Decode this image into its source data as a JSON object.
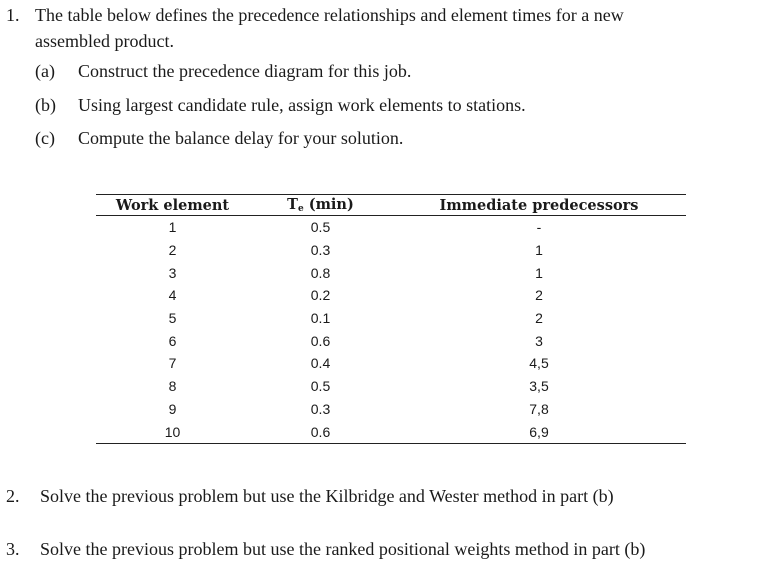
{
  "question1": {
    "number": "1.",
    "text_line1": "The table below defines the precedence relationships and element times for a new",
    "text_line2": "assembled product.",
    "parts": [
      {
        "label": "(a)",
        "text": "Construct the precedence diagram for this job."
      },
      {
        "label": "(b)",
        "text": "Using largest candidate rule, assign work elements to stations."
      },
      {
        "label": "(c)",
        "text": "Compute the balance delay for your solution."
      }
    ]
  },
  "table": {
    "headers": {
      "work_element": "Work element",
      "time_main": "T",
      "time_sub": "e",
      "time_unit": " (min)",
      "predecessors": "Immediate predecessors"
    },
    "rows": [
      {
        "element": "1",
        "time": "0.5",
        "pred": "-"
      },
      {
        "element": "2",
        "time": "0.3",
        "pred": "1"
      },
      {
        "element": "3",
        "time": "0.8",
        "pred": "1"
      },
      {
        "element": "4",
        "time": "0.2",
        "pred": "2"
      },
      {
        "element": "5",
        "time": "0.1",
        "pred": "2"
      },
      {
        "element": "6",
        "time": "0.6",
        "pred": "3"
      },
      {
        "element": "7",
        "time": "0.4",
        "pred": "4,5"
      },
      {
        "element": "8",
        "time": "0.5",
        "pred": "3,5"
      },
      {
        "element": "9",
        "time": "0.3",
        "pred": "7,8"
      },
      {
        "element": "10",
        "time": "0.6",
        "pred": "6,9"
      }
    ]
  },
  "question2": {
    "number": "2.",
    "text": "Solve the previous problem but use the Kilbridge and Wester method in part (b)"
  },
  "question3": {
    "number": "3.",
    "text": "Solve the previous problem but use the ranked positional weights method in part (b)"
  }
}
